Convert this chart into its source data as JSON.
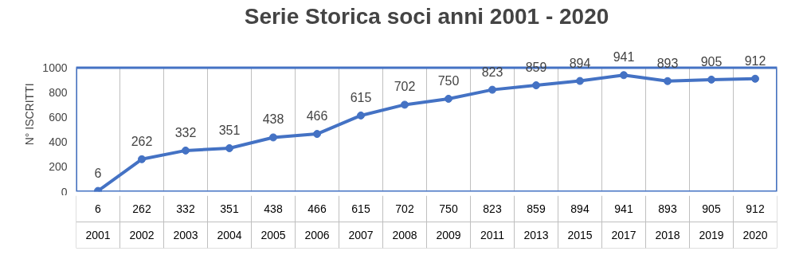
{
  "chart_data": {
    "type": "line",
    "title": "Serie Storica soci anni 2001 - 2020",
    "ylabel": "N°   ISCRITTI",
    "categories": [
      "2001",
      "2002",
      "2003",
      "2004",
      "2005",
      "2006",
      "2007",
      "2008",
      "2009",
      "2011",
      "2013",
      "2015",
      "2017",
      "2018",
      "2019",
      "2020"
    ],
    "series": [
      {
        "color": "#4472c4",
        "values": [
          6,
          262,
          332,
          351,
          438,
          466,
          615,
          702,
          750,
          823,
          859,
          894,
          941,
          893,
          905,
          912
        ]
      }
    ],
    "annotations": [
      "6",
      "262",
      "332",
      "351",
      "438",
      "466",
      "615",
      "702",
      "750",
      "823",
      "859",
      "894",
      "941",
      "893",
      "905",
      "912"
    ],
    "ylim": [
      0,
      1000
    ],
    "yticks": [
      0,
      200,
      400,
      600,
      800,
      1000
    ],
    "grid": "x",
    "marker": "circle",
    "data_labels": true
  }
}
